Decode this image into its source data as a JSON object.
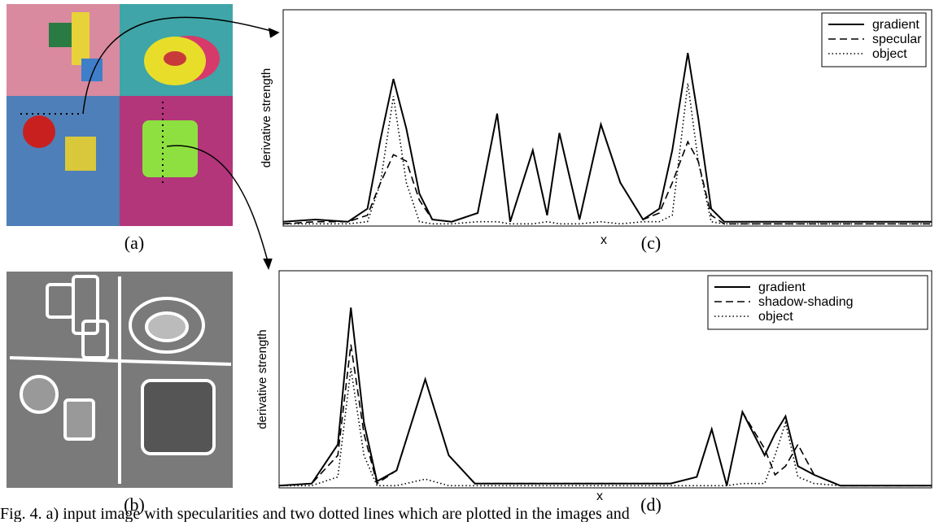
{
  "chart_data": [
    {
      "type": "line",
      "label": "(c)",
      "ylabel": "derivative strength",
      "xlabel": "x",
      "xlim": [
        0,
        100
      ],
      "ylim": [
        0,
        1
      ],
      "x": [
        0,
        5,
        10,
        13,
        15,
        17,
        19,
        21,
        23,
        26,
        30,
        33,
        35,
        38.5,
        40.7,
        42.6,
        45.7,
        49,
        52,
        55.5,
        58,
        60,
        62.4,
        64,
        66,
        68,
        75,
        85,
        100
      ],
      "series": [
        {
          "name": "gradient",
          "color": "#000000",
          "dash": "solid",
          "values": [
            0.02,
            0.03,
            0.02,
            0.08,
            0.4,
            0.68,
            0.45,
            0.15,
            0.03,
            0.02,
            0.06,
            0.52,
            0.02,
            0.35,
            0.05,
            0.43,
            0.03,
            0.47,
            0.2,
            0.03,
            0.08,
            0.35,
            0.8,
            0.5,
            0.08,
            0.02,
            0.02,
            0.02,
            0.02
          ]
        },
        {
          "name": "specular",
          "color": "#000000",
          "dash": "dashed",
          "values": [
            0.01,
            0.02,
            0.02,
            0.05,
            0.2,
            0.33,
            0.3,
            0.12,
            0.03,
            0.02,
            0.06,
            0.52,
            0.02,
            0.35,
            0.05,
            0.43,
            0.03,
            0.47,
            0.2,
            0.03,
            0.06,
            0.2,
            0.39,
            0.3,
            0.05,
            0.01,
            0.01,
            0.01,
            0.01
          ]
        },
        {
          "name": "object",
          "color": "#000000",
          "dash": "dotted",
          "values": [
            0.01,
            0.01,
            0.01,
            0.02,
            0.2,
            0.6,
            0.2,
            0.02,
            0.01,
            0.01,
            0.02,
            0.02,
            0.01,
            0.01,
            0.02,
            0.01,
            0.01,
            0.02,
            0.01,
            0.02,
            0.02,
            0.05,
            0.66,
            0.3,
            0.02,
            0.01,
            0.01,
            0.01,
            0.01
          ]
        }
      ]
    },
    {
      "type": "line",
      "label": "(d)",
      "ylabel": "derivative strength",
      "xlabel": "x",
      "xlim": [
        0,
        100
      ],
      "ylim": [
        0,
        1
      ],
      "x": [
        0,
        5,
        9,
        11,
        13,
        15,
        18,
        22.4,
        26,
        30,
        45,
        60,
        64,
        66.3,
        68.6,
        71,
        74.4,
        76,
        77.6,
        79.5,
        82,
        86,
        100
      ],
      "series": [
        {
          "name": "gradient",
          "color": "#000000",
          "dash": "solid",
          "values": [
            0.01,
            0.02,
            0.2,
            0.83,
            0.3,
            0.03,
            0.08,
            0.5,
            0.15,
            0.02,
            0.02,
            0.02,
            0.05,
            0.27,
            0.01,
            0.35,
            0.15,
            0.25,
            0.33,
            0.1,
            0.06,
            0.01,
            0.01
          ]
        },
        {
          "name": "shadow-shading",
          "color": "#000000",
          "dash": "dashed",
          "values": [
            0.01,
            0.02,
            0.15,
            0.66,
            0.25,
            0.02,
            0.08,
            0.5,
            0.15,
            0.02,
            0.02,
            0.02,
            0.05,
            0.27,
            0.01,
            0.35,
            0.18,
            0.06,
            0.1,
            0.2,
            0.06,
            0.01,
            0.01
          ]
        },
        {
          "name": "object",
          "color": "#000000",
          "dash": "dotted",
          "values": [
            0.01,
            0.01,
            0.05,
            0.55,
            0.15,
            0.01,
            0.01,
            0.04,
            0.01,
            0.01,
            0.01,
            0.01,
            0.01,
            0.01,
            0.01,
            0.02,
            0.02,
            0.15,
            0.3,
            0.05,
            0.02,
            0.01,
            0.01
          ]
        }
      ]
    }
  ],
  "panel_labels": [
    "(a)",
    "(b)"
  ],
  "caption": "Fig. 4. a) input image with specularities and two dotted lines which are plotted in the images and"
}
